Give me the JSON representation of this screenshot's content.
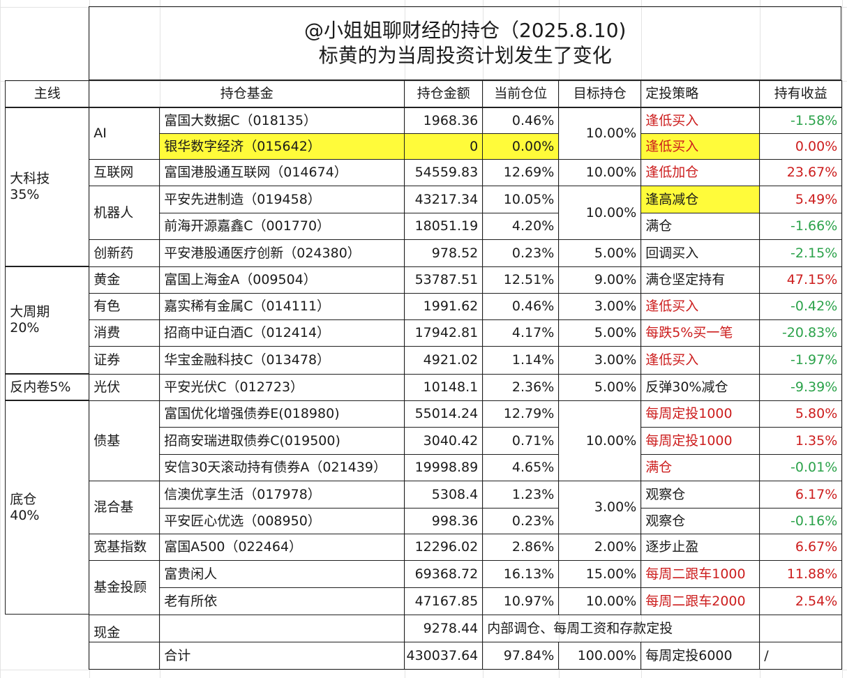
{
  "title": {
    "line1": "@小姐姐聊财经的持仓（2025.8.10)",
    "line2": "标黄的为当周投资计划发生了变化"
  },
  "headers": {
    "mainline": "主线",
    "fund": "持仓基金",
    "amount": "持仓金额",
    "position": "当前仓位",
    "target": "目标持仓",
    "strategy": "定投策略",
    "return": "持有收益"
  },
  "main_lines": {
    "tech": {
      "name": "大科技",
      "pct": "35%"
    },
    "cycle": {
      "name": "大周期",
      "pct": "20%"
    },
    "anti": {
      "name": "反内卷5%"
    },
    "base": {
      "name": "底仓",
      "pct": "40%"
    }
  },
  "sectors": {
    "ai": "AI",
    "internet": "互联网",
    "robot": "机器人",
    "pharma": "创新药",
    "gold": "黄金",
    "nonferrous": "有色",
    "consume": "消费",
    "broker": "证券",
    "solar": "光伏",
    "bond": "债基",
    "mixed": "混合基",
    "index": "宽基指数",
    "advisor": "基金投顾",
    "cash": "现金"
  },
  "targets": {
    "ai": "10.00%",
    "internet": "10.00%",
    "robot": "10.00%",
    "pharma": "5.00%",
    "gold": "9.00%",
    "nonferrous": "3.00%",
    "consume": "5.00%",
    "broker": "3.00%",
    "solar": "5.00%",
    "bond": "10.00%",
    "mixed": "3.00%",
    "index": "2.00%",
    "advisor1": "15.00%",
    "advisor2": "10.00%"
  },
  "rows": [
    {
      "fund": "富国大数据C（018135）",
      "amount": "1968.36",
      "position": "0.46%",
      "strategy": "逢低买入",
      "return": "-1.58%"
    },
    {
      "fund": "银华数字经济（015642）",
      "amount": "0",
      "position": "0.00%",
      "strategy": "逢低买入",
      "return": "0.00%"
    },
    {
      "fund": "富国港股通互联网（014674）",
      "amount": "54559.83",
      "position": "12.69%",
      "strategy": "逢低加仓",
      "return": "23.67%"
    },
    {
      "fund": "平安先进制造（019458）",
      "amount": "43217.34",
      "position": "10.05%",
      "strategy": "逢高减仓",
      "return": "5.49%"
    },
    {
      "fund": "前海开源嘉鑫C（001770）",
      "amount": "18051.19",
      "position": "4.20%",
      "strategy": "满仓",
      "return": "-1.66%"
    },
    {
      "fund": "平安港股通医疗创新（024380）",
      "amount": "978.52",
      "position": "0.23%",
      "strategy": "回调买入",
      "return": "-2.15%"
    },
    {
      "fund": "富国上海金A（009504）",
      "amount": "53787.51",
      "position": "12.51%",
      "strategy": "满仓坚定持有",
      "return": "47.15%"
    },
    {
      "fund": "嘉实稀有金属C（014111）",
      "amount": "1991.62",
      "position": "0.46%",
      "strategy": "逢低买入",
      "return": "-0.42%"
    },
    {
      "fund": "招商中证白酒C（012414）",
      "amount": "17942.81",
      "position": "4.17%",
      "strategy": "每跌5%买一笔",
      "return": "-20.83%"
    },
    {
      "fund": "华宝金融科技C（013478）",
      "amount": "4921.02",
      "position": "1.14%",
      "strategy": "逢低买入",
      "return": "-1.97%"
    },
    {
      "fund": "平安光伏C（012723）",
      "amount": "10148.1",
      "position": "2.36%",
      "strategy": "反弹30%减仓",
      "return": "-9.39%"
    },
    {
      "fund": "富国优化增强债券E(018980)",
      "amount": "55014.24",
      "position": "12.79%",
      "strategy": "每周定投1000",
      "return": "5.80%"
    },
    {
      "fund": "招商安瑞进取债券C(019500)",
      "amount": "3040.42",
      "position": "0.71%",
      "strategy": "每周定投1000",
      "return": "1.35%"
    },
    {
      "fund": "安信30天滚动持有债券A（021439）",
      "amount": "19998.89",
      "position": "4.65%",
      "strategy": "满仓",
      "return": "-0.01%"
    },
    {
      "fund": "信澳优享生活（017978）",
      "amount": "5308.4",
      "position": "1.23%",
      "strategy": "观察仓",
      "return": "6.17%"
    },
    {
      "fund": "平安匠心优选（008950）",
      "amount": "998.36",
      "position": "0.23%",
      "strategy": "观察仓",
      "return": "-0.16%"
    },
    {
      "fund": "富国A500（022464）",
      "amount": "12296.02",
      "position": "2.86%",
      "strategy": "逐步止盈",
      "return": "6.67%"
    },
    {
      "fund": "富贵闲人",
      "amount": "69368.72",
      "position": "16.13%",
      "strategy": "每周二跟车1000",
      "return": "11.88%"
    },
    {
      "fund": "老有所依",
      "amount": "47167.85",
      "position": "10.97%",
      "strategy": "每周二跟车2000",
      "return": "2.54%"
    }
  ],
  "cash": {
    "amount": "9278.44",
    "note": "内部调仓、每周工资和存款定投"
  },
  "total": {
    "label": "合计",
    "amount": "430037.64",
    "position": "97.84%",
    "target": "100.00%",
    "strategy": "每周定投6000",
    "return": "/"
  },
  "colors": {
    "highlight": "#fffb3a",
    "positive": "#cc1d1d",
    "negative": "#2ba24a",
    "border": "#1f1f1f"
  }
}
